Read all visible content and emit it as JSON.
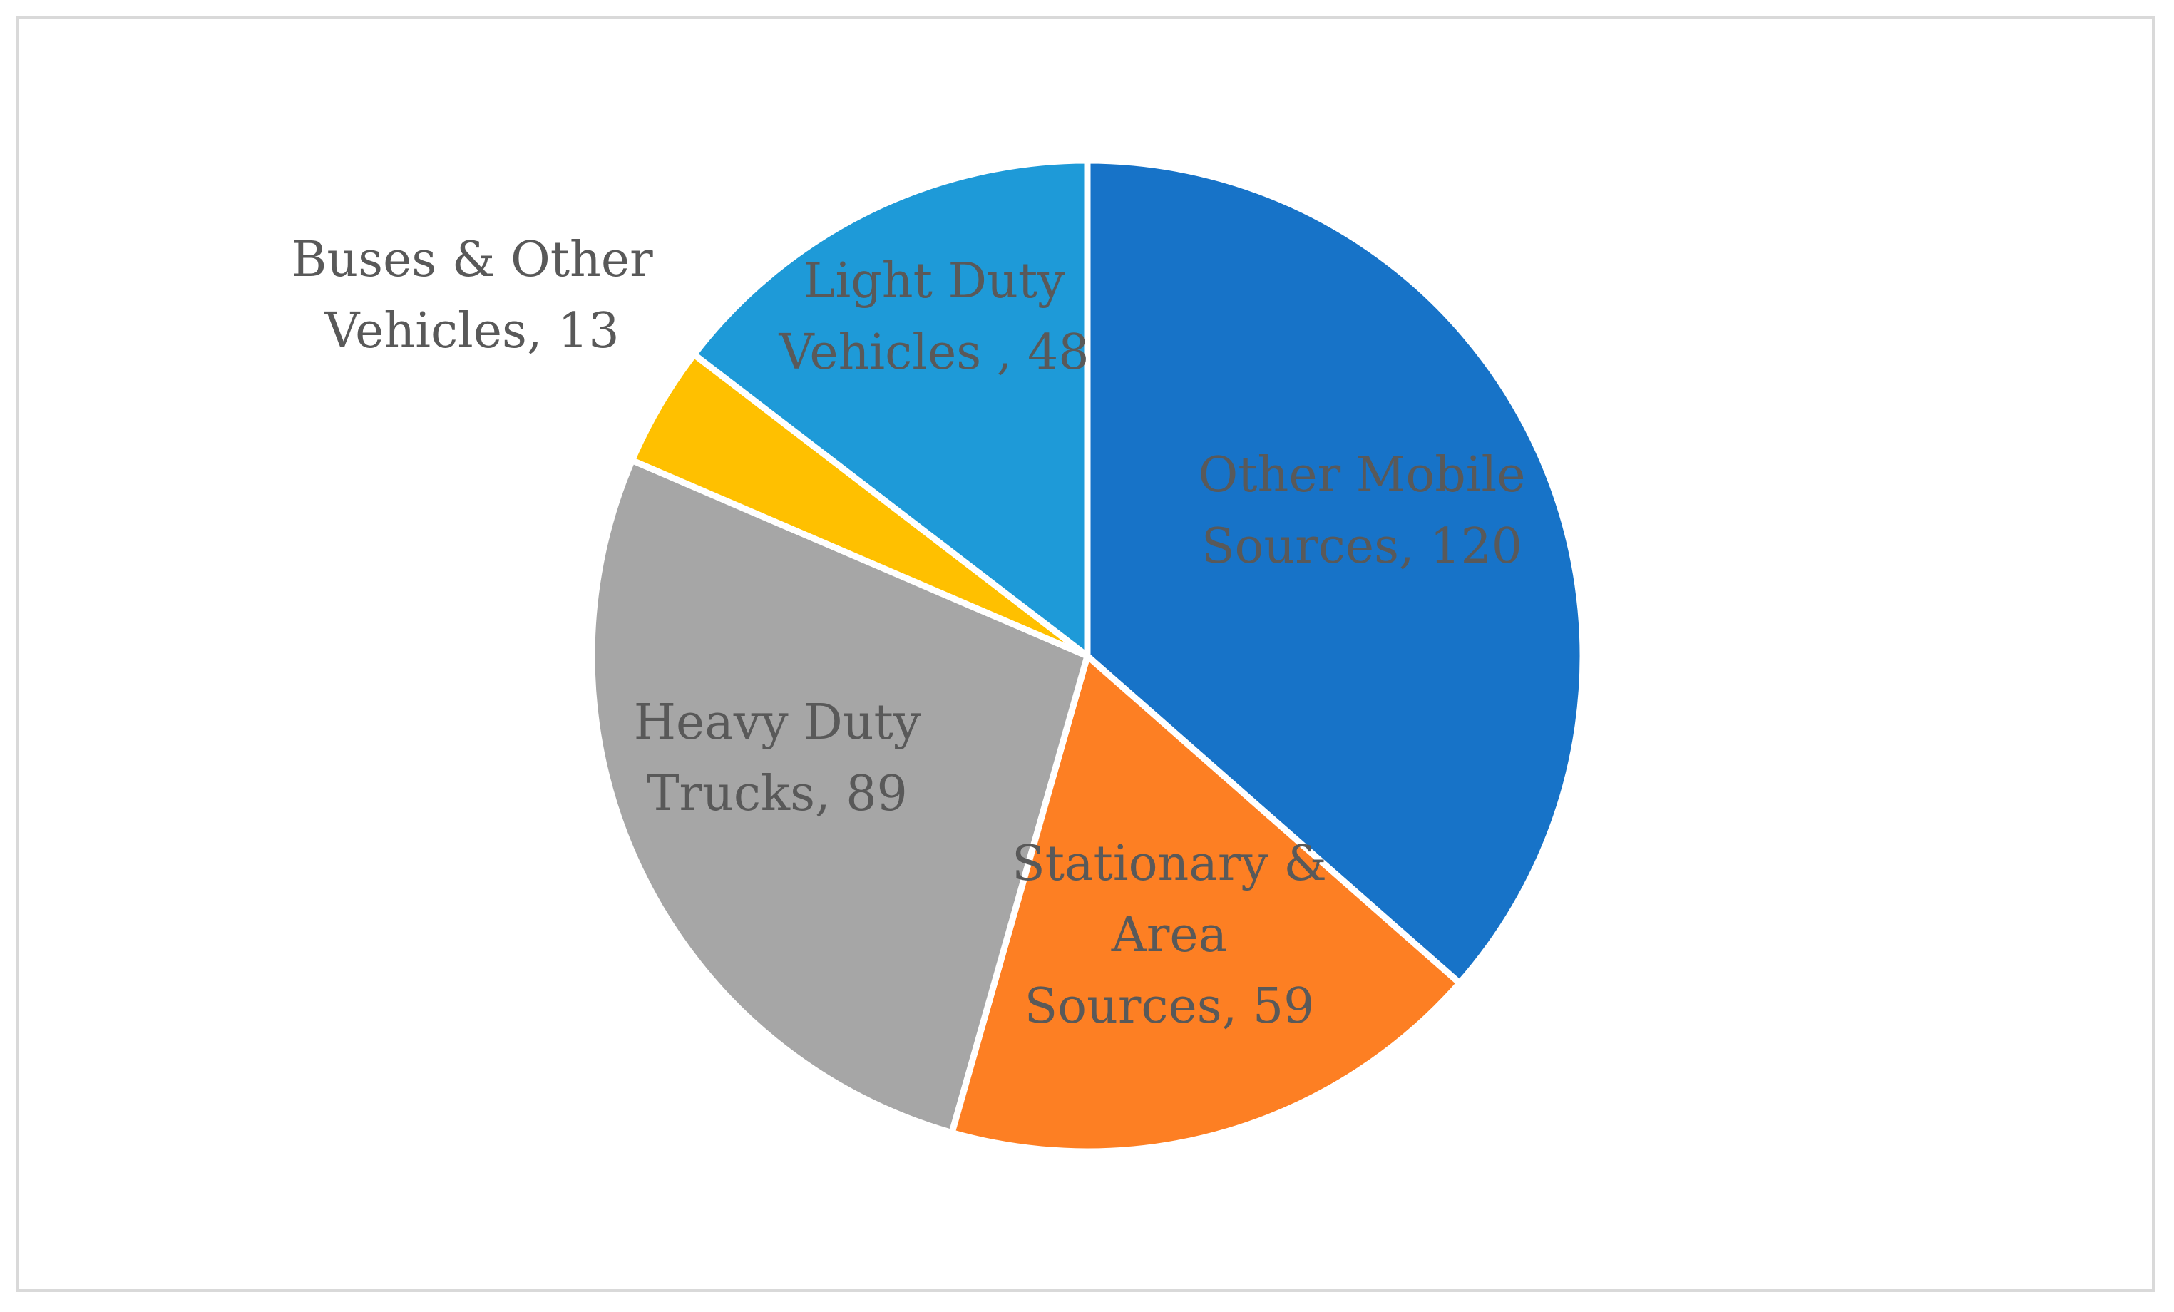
{
  "chart_data": {
    "type": "pie",
    "title": "",
    "slices": [
      {
        "label": "Other Mobile Sources",
        "display_lines": [
          "Other Mobile",
          "Sources, 120"
        ],
        "value": 120,
        "color": "#1773c8"
      },
      {
        "label": "Stationary & Area Sources",
        "display_lines": [
          "Stationary &",
          "Area",
          "Sources, 59"
        ],
        "value": 59,
        "color": "#fd7f23"
      },
      {
        "label": "Heavy Duty Trucks",
        "display_lines": [
          "Heavy Duty",
          "Trucks, 89"
        ],
        "value": 89,
        "color": "#a6a6a6"
      },
      {
        "label": "Buses & Other Vehicles",
        "display_lines": [
          "Buses & Other",
          "Vehicles, 13"
        ],
        "value": 13,
        "color": "#ffc000"
      },
      {
        "label": "Light Duty Vehicles",
        "display_lines": [
          "Light Duty",
          "Vehicles , 48"
        ],
        "value": 48,
        "color": "#1e9ad8"
      }
    ],
    "label_color": "#595959",
    "border_color": "#d9d9d9",
    "slice_separator_color": "#ffffff",
    "legend": "none"
  }
}
